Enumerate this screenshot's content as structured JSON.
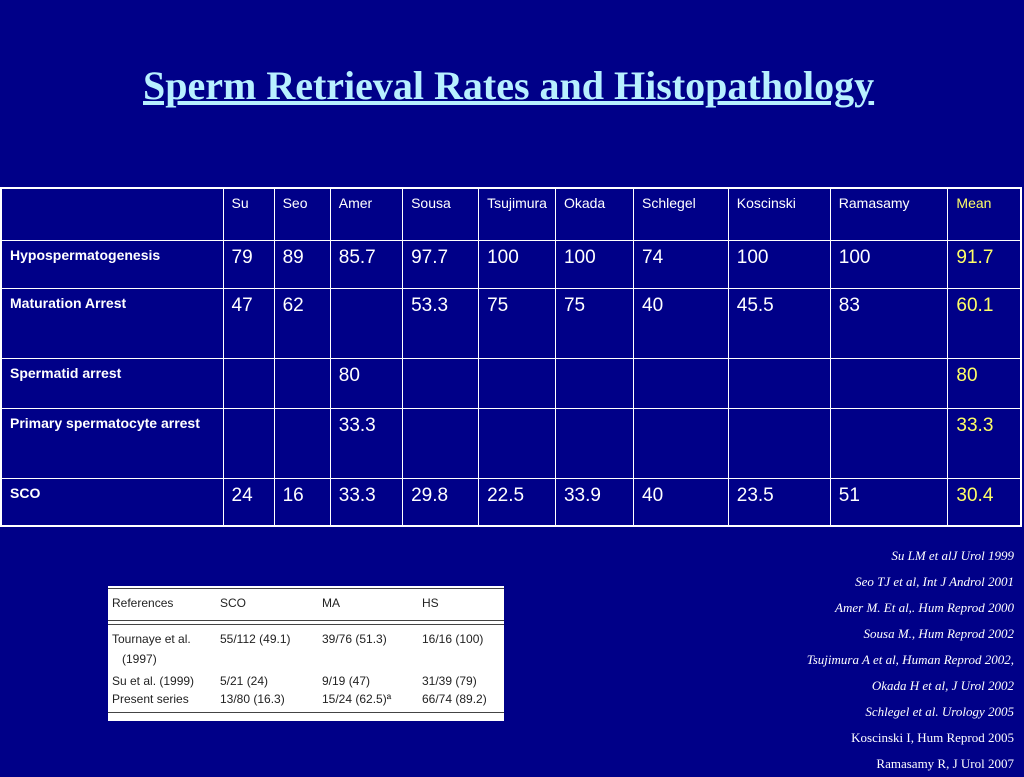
{
  "title": "Sperm Retrieval Rates and Histopathology",
  "table": {
    "columns": [
      "Su",
      "Seo",
      "Amer",
      "Sousa",
      "Tsujimura",
      "Okada",
      "Schlegel",
      "Koscinski",
      "Ramasamy",
      "Mean"
    ],
    "rows": [
      {
        "label": "Hypospermatogenesis",
        "values": [
          "79",
          "89",
          "85.7",
          "97.7",
          "100",
          "100",
          "74",
          "100",
          "100"
        ],
        "mean": "91.7"
      },
      {
        "label": "Maturation Arrest",
        "values": [
          "47",
          "62",
          "",
          "53.3",
          "75",
          "75",
          "40",
          "45.5",
          "83"
        ],
        "mean": "60.1"
      },
      {
        "label": "Spermatid arrest",
        "values": [
          "",
          "",
          "80",
          "",
          "",
          "",
          "",
          "",
          ""
        ],
        "mean": "80"
      },
      {
        "label": "Primary spermatocyte arrest",
        "values": [
          "",
          "",
          "33.3",
          "",
          "",
          "",
          "",
          "",
          ""
        ],
        "mean": "33.3"
      },
      {
        "label": "SCO",
        "values": [
          "24",
          "16",
          "33.3",
          "29.8",
          "22.5",
          "33.9",
          "40",
          "23.5",
          "51"
        ],
        "mean": "30.4"
      }
    ]
  },
  "references": [
    "Su LM et alJ Urol 1999",
    "Seo TJ et al, Int J Androl 2001",
    "Amer M. Et al,. Hum Reprod 2000",
    "Sousa M., Hum Reprod 2002",
    "Tsujimura A et al, Human Reprod 2002,",
    "Okada H et al, J Urol 2002",
    "Schlegel et al. Urology 2005",
    "Koscinski I, Hum Reprod 2005",
    "Ramasamy R, J Urol 2007"
  ],
  "inset_table": {
    "headers": [
      "References",
      "SCO",
      "MA",
      "HS"
    ],
    "rows": [
      {
        "ref": "Tournaye et al.",
        "ref2": "(1997)",
        "sco": "55/112 (49.1)",
        "ma": "39/76 (51.3)",
        "hs": "16/16 (100)"
      },
      {
        "ref": "Su et al. (1999)",
        "sco": "5/21 (24)",
        "ma": "9/19 (47)",
        "hs": "31/39 (79)"
      },
      {
        "ref": "Present series",
        "sco": "13/80 (16.3)",
        "ma": "15/24 (62.5)ª",
        "hs": "66/74 (89.2)"
      }
    ]
  }
}
